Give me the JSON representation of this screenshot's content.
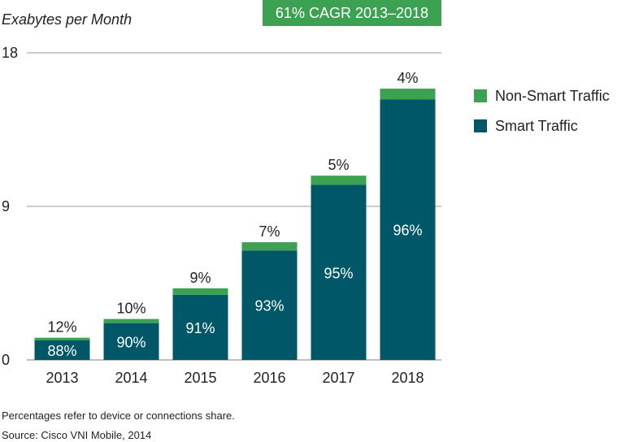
{
  "chart_data": {
    "type": "bar",
    "stacked": true,
    "title": "",
    "badge": "61% CAGR 2013–2018",
    "xlabel": "",
    "ylabel": "Exabytes per Month",
    "ylim": [
      0,
      18
    ],
    "yticks": [
      "0",
      "9",
      "18"
    ],
    "ytick_values": [
      0,
      9,
      18
    ],
    "categories": [
      "2013",
      "2014",
      "2015",
      "2016",
      "2017",
      "2018"
    ],
    "totals": [
      1.3,
      2.4,
      4.2,
      6.9,
      10.8,
      15.9
    ],
    "series": [
      {
        "name": "Smart Traffic",
        "color": "#005767",
        "share_labels": [
          "88%",
          "90%",
          "91%",
          "93%",
          "95%",
          "96%"
        ],
        "shares": [
          0.88,
          0.9,
          0.91,
          0.93,
          0.95,
          0.96
        ]
      },
      {
        "name": "Non-Smart Traffic",
        "color": "#3ca252",
        "share_labels": [
          "12%",
          "10%",
          "9%",
          "7%",
          "5%",
          "4%"
        ],
        "shares": [
          0.12,
          0.1,
          0.09,
          0.07,
          0.05,
          0.04
        ]
      }
    ],
    "legend": {
      "placement": "right",
      "entries": [
        "Non-Smart Traffic",
        "Smart Traffic"
      ]
    },
    "grid": true
  },
  "notes": {
    "line1": "Percentages refer to device or connections share.",
    "line2": "Source: Cisco VNI Mobile, 2014"
  }
}
